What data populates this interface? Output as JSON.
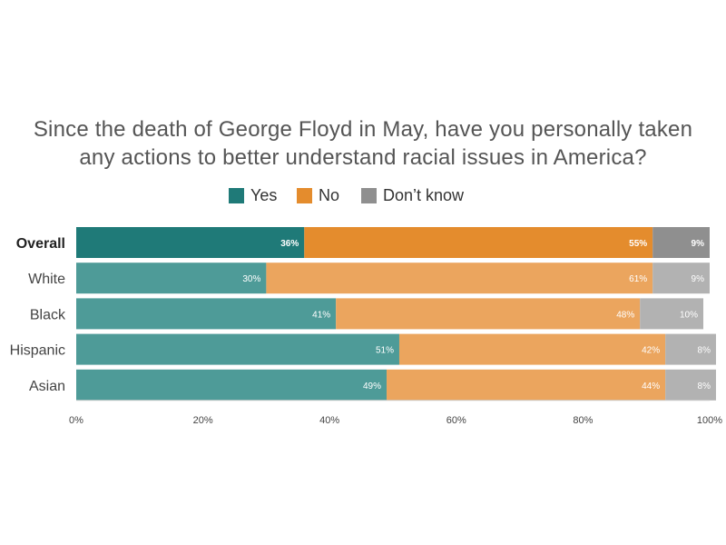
{
  "chart_data": {
    "type": "bar",
    "orientation": "horizontal",
    "stacked": true,
    "title_lines": [
      "Since the death of George Floyd in May, have you personally taken",
      "any actions to better understand racial issues in America?"
    ],
    "categories": [
      "Overall",
      "White",
      "Black",
      "Hispanic",
      "Asian"
    ],
    "highlighted_category": "Overall",
    "series": [
      {
        "name": "Yes",
        "values": [
          36,
          30,
          41,
          51,
          49
        ],
        "labels": [
          "36%",
          "30%",
          "41%",
          "51%",
          "49%"
        ],
        "color": "#1f7a78",
        "color_muted": "#4e9b98"
      },
      {
        "name": "No",
        "values": [
          55,
          61,
          48,
          42,
          44
        ],
        "labels": [
          "55%",
          "61%",
          "48%",
          "42%",
          "44%"
        ],
        "color": "#e48c2d",
        "color_muted": "#eba55e"
      },
      {
        "name": "Don’t know",
        "values": [
          9,
          9,
          10,
          8,
          8
        ],
        "labels": [
          "9%",
          "9%",
          "10%",
          "8%",
          "8%"
        ],
        "color": "#8f8f8f",
        "color_muted": "#b2b2b2"
      }
    ],
    "x_ticks": [
      "0%",
      "20%",
      "40%",
      "60%",
      "80%",
      "100%"
    ],
    "xlim": [
      0,
      100
    ],
    "legend_position": "top",
    "grid": false
  }
}
